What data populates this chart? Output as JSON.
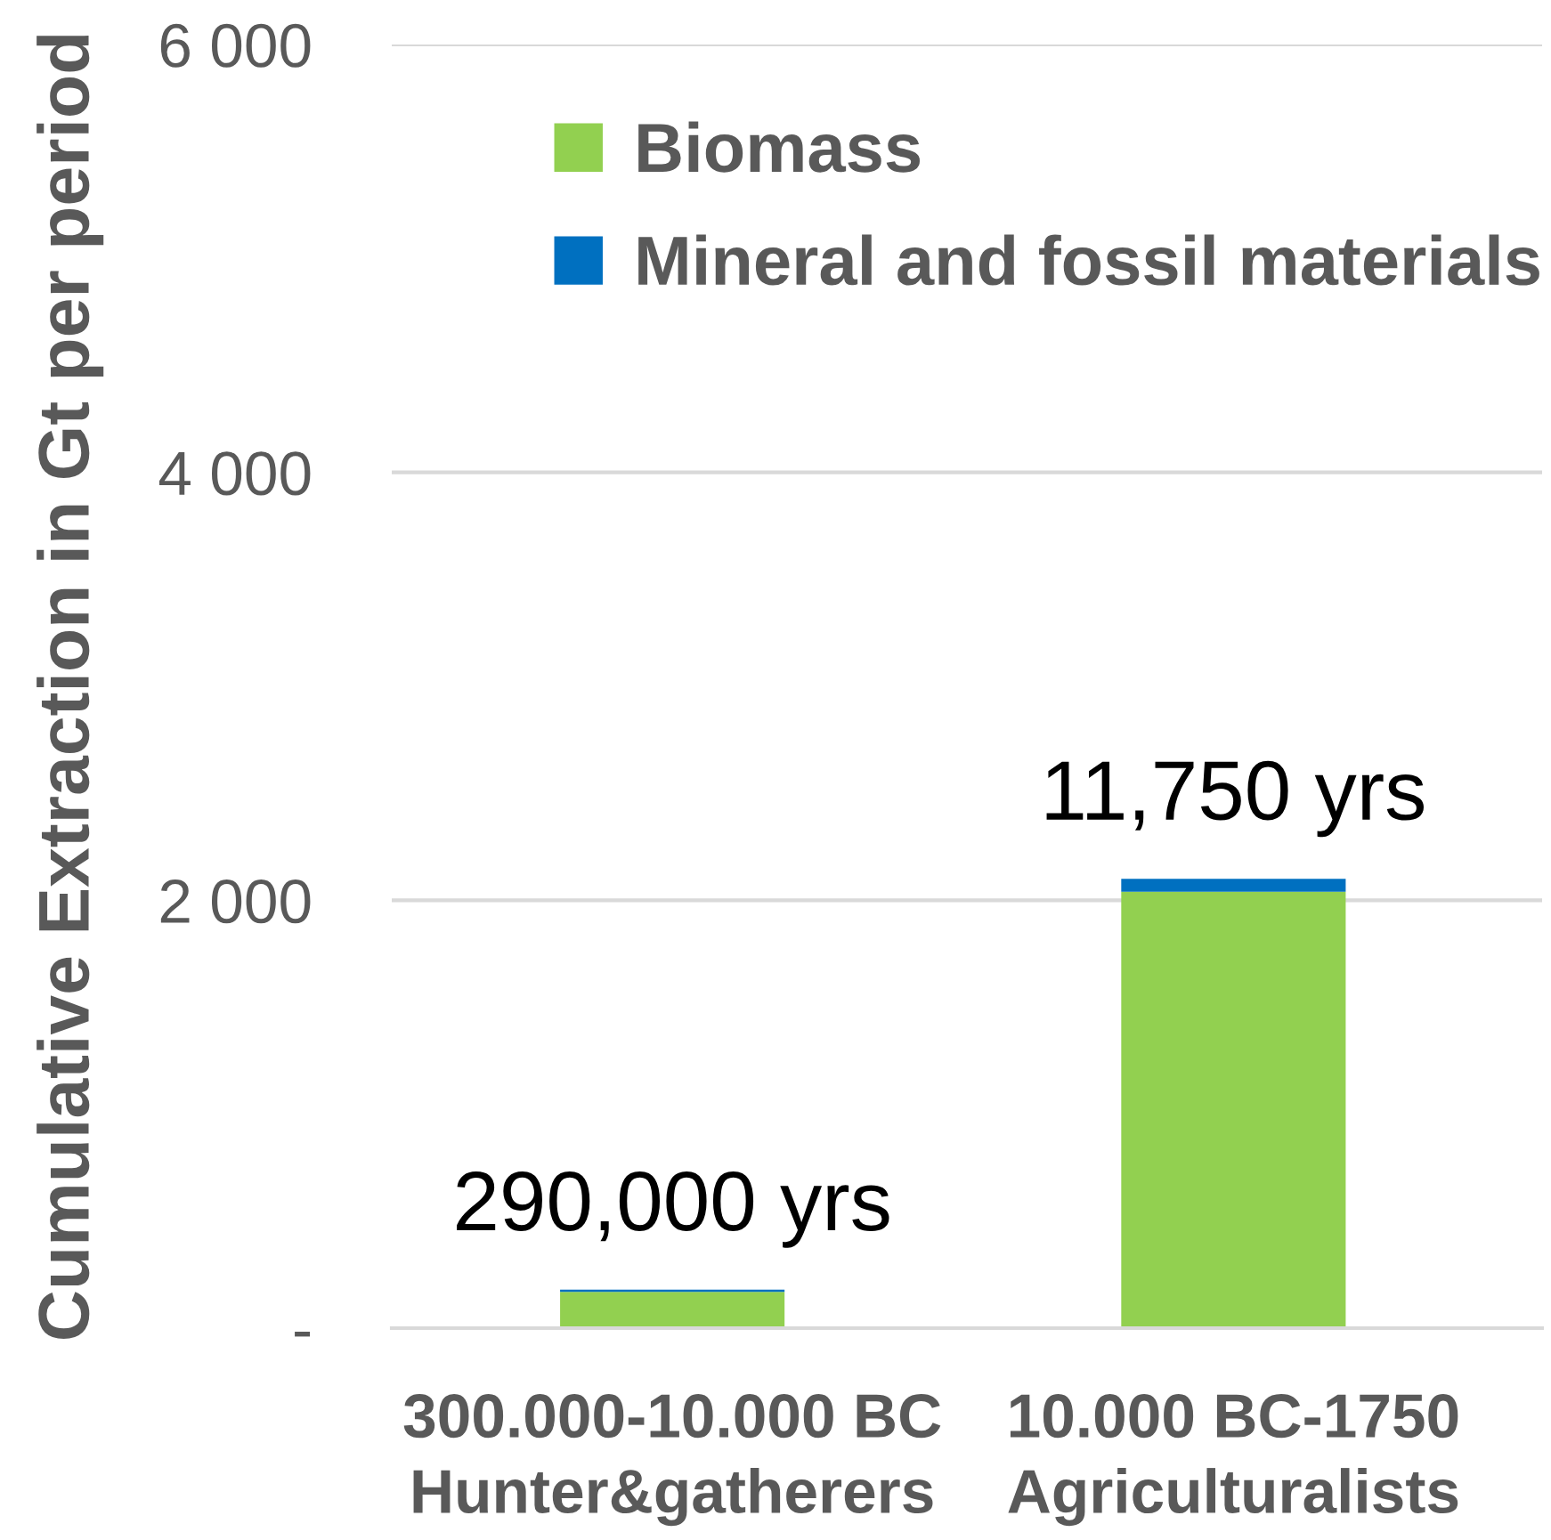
{
  "chart_data": {
    "type": "bar",
    "stacked": true,
    "categories": [
      "300.000-10.000 BC\nHunter&gatherers",
      "10.000 BC-1750\nAgriculturalists"
    ],
    "series": [
      {
        "name": "Biomass",
        "color": "#92d050",
        "values": [
          170,
          2040
        ]
      },
      {
        "name": "Mineral and fossil materials",
        "color": "#0070c0",
        "values": [
          10,
          60
        ]
      }
    ],
    "ylabel": "Cumulative Extraction in Gt per period",
    "ylim": [
      0,
      6000
    ],
    "yticks": [
      {
        "value": 0,
        "label": "-"
      },
      {
        "value": 2000,
        "label": "2 000"
      },
      {
        "value": 4000,
        "label": "4 000"
      },
      {
        "value": 6000,
        "label": "6 000"
      }
    ],
    "grid": "y",
    "legend": "top right",
    "annotations": [
      {
        "text": "290,000 yrs",
        "x": "300.000-10.000 BC\nHunter&gatherers",
        "y": 180
      },
      {
        "text": "11,750 yrs",
        "x": "10.000 BC-1750\nAgriculturalists",
        "y": 2100
      }
    ]
  }
}
